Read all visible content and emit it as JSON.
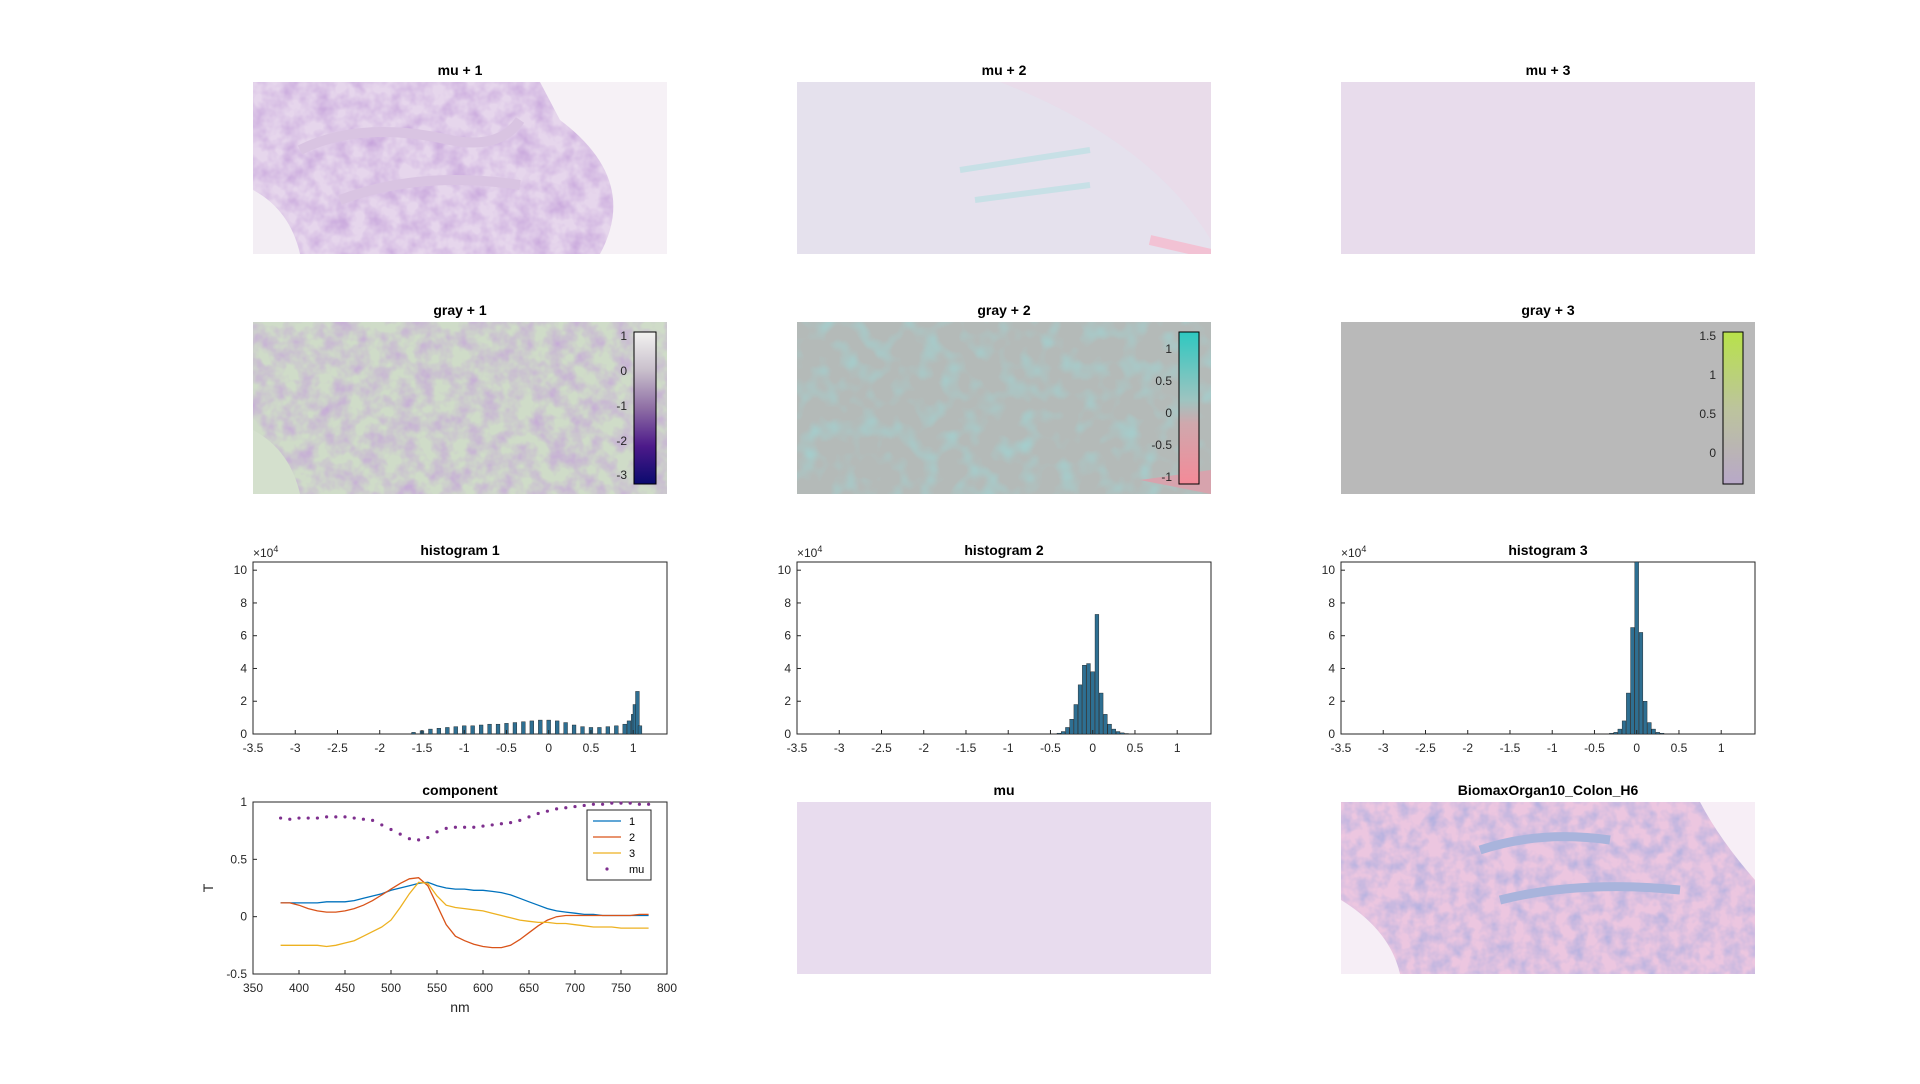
{
  "image_panels": [
    {
      "title": "mu + 1"
    },
    {
      "title": "mu + 2"
    },
    {
      "title": "mu + 3"
    },
    {
      "title": "gray + 1",
      "colorbar_ticks": [
        "1",
        "0",
        "-1",
        "-2",
        "-3"
      ]
    },
    {
      "title": "gray + 2",
      "colorbar_ticks": [
        "1",
        "0.5",
        "0",
        "-0.5",
        "-1"
      ]
    },
    {
      "title": "gray + 3",
      "colorbar_ticks": [
        "1.5",
        "1",
        "0.5",
        "0"
      ]
    },
    {
      "title": "mu"
    },
    {
      "title": "BiomaxOrgan10_Colon_H6"
    }
  ],
  "colors": {
    "series_1": "#0072BD",
    "series_2": "#D95319",
    "series_3": "#EDB120",
    "mu": "#7E2F8E",
    "bar": "#2E6F92"
  },
  "chart_data": [
    {
      "type": "bar",
      "title": "histogram 1",
      "exponent_label": "×10",
      "exponent_power": "4",
      "xlim": [
        -3.5,
        1.4
      ],
      "ylim": [
        0,
        10.5
      ],
      "xticks": [
        "-3.5",
        "-3",
        "-2.5",
        "-2",
        "-1.5",
        "-1",
        "-0.5",
        "0",
        "0.5",
        "1"
      ],
      "yticks": [
        "0",
        "2",
        "4",
        "6",
        "8",
        "10"
      ],
      "x": [
        -1.6,
        -1.5,
        -1.4,
        -1.3,
        -1.2,
        -1.1,
        -1.0,
        -0.9,
        -0.8,
        -0.7,
        -0.6,
        -0.5,
        -0.4,
        -0.3,
        -0.2,
        -0.1,
        0.0,
        0.1,
        0.2,
        0.3,
        0.4,
        0.5,
        0.6,
        0.7,
        0.8,
        0.9,
        0.95,
        1.0,
        1.02,
        1.05,
        1.08
      ],
      "values": [
        0.1,
        0.2,
        0.3,
        0.35,
        0.4,
        0.45,
        0.5,
        0.5,
        0.55,
        0.6,
        0.6,
        0.65,
        0.7,
        0.75,
        0.8,
        0.85,
        0.85,
        0.8,
        0.7,
        0.55,
        0.45,
        0.4,
        0.4,
        0.45,
        0.5,
        0.6,
        0.8,
        1.2,
        1.8,
        2.6,
        0.5
      ]
    },
    {
      "type": "bar",
      "title": "histogram 2",
      "exponent_label": "×10",
      "exponent_power": "4",
      "xlim": [
        -3.5,
        1.4
      ],
      "ylim": [
        0,
        10.5
      ],
      "xticks": [
        "-3.5",
        "-3",
        "-2.5",
        "-2",
        "-1.5",
        "-1",
        "-0.5",
        "0",
        "0.5",
        "1"
      ],
      "yticks": [
        "0",
        "2",
        "4",
        "6",
        "8",
        "10"
      ],
      "x": [
        -0.4,
        -0.35,
        -0.3,
        -0.25,
        -0.2,
        -0.15,
        -0.1,
        -0.05,
        0.0,
        0.05,
        0.1,
        0.15,
        0.2,
        0.25,
        0.3,
        0.35,
        0.4
      ],
      "values": [
        0.05,
        0.15,
        0.4,
        0.9,
        1.8,
        3.0,
        4.2,
        4.3,
        3.8,
        7.3,
        2.5,
        1.2,
        0.6,
        0.3,
        0.15,
        0.07,
        0.03
      ]
    },
    {
      "type": "bar",
      "title": "histogram 3",
      "exponent_label": "×10",
      "exponent_power": "4",
      "xlim": [
        -3.5,
        1.4
      ],
      "ylim": [
        0,
        10.5
      ],
      "xticks": [
        "-3.5",
        "-3",
        "-2.5",
        "-2",
        "-1.5",
        "-1",
        "-0.5",
        "0",
        "0.5",
        "1"
      ],
      "yticks": [
        "0",
        "2",
        "4",
        "6",
        "8",
        "10"
      ],
      "x": [
        -0.3,
        -0.25,
        -0.2,
        -0.15,
        -0.1,
        -0.05,
        0.0,
        0.05,
        0.1,
        0.15,
        0.2,
        0.25,
        0.3
      ],
      "values": [
        0.05,
        0.1,
        0.3,
        0.8,
        2.5,
        6.5,
        10.5,
        6.2,
        2.0,
        0.7,
        0.3,
        0.1,
        0.05
      ]
    },
    {
      "type": "line",
      "title": "component",
      "xlabel": "nm",
      "ylabel": "T",
      "xlim": [
        350,
        800
      ],
      "ylim": [
        -0.5,
        1
      ],
      "xticks": [
        "350",
        "400",
        "450",
        "500",
        "550",
        "600",
        "650",
        "700",
        "750",
        "800"
      ],
      "yticks": [
        "-0.5",
        "0",
        "0.5",
        "1"
      ],
      "legend_position": "top-right",
      "x": [
        380,
        390,
        400,
        410,
        420,
        430,
        440,
        450,
        460,
        470,
        480,
        490,
        500,
        510,
        520,
        530,
        540,
        550,
        560,
        570,
        580,
        590,
        600,
        610,
        620,
        630,
        640,
        650,
        660,
        670,
        680,
        690,
        700,
        710,
        720,
        730,
        740,
        750,
        760,
        770,
        780
      ],
      "series": [
        {
          "name": "1",
          "values": [
            0.12,
            0.12,
            0.12,
            0.12,
            0.12,
            0.13,
            0.13,
            0.13,
            0.14,
            0.16,
            0.18,
            0.2,
            0.23,
            0.25,
            0.27,
            0.29,
            0.3,
            0.27,
            0.25,
            0.24,
            0.24,
            0.23,
            0.23,
            0.22,
            0.21,
            0.19,
            0.16,
            0.13,
            0.1,
            0.07,
            0.05,
            0.04,
            0.03,
            0.02,
            0.02,
            0.01,
            0.01,
            0.01,
            0.01,
            0.01,
            0.01
          ]
        },
        {
          "name": "2",
          "values": [
            0.12,
            0.12,
            0.1,
            0.07,
            0.05,
            0.04,
            0.04,
            0.05,
            0.07,
            0.1,
            0.14,
            0.19,
            0.24,
            0.29,
            0.33,
            0.34,
            0.27,
            0.1,
            -0.07,
            -0.17,
            -0.21,
            -0.24,
            -0.26,
            -0.27,
            -0.27,
            -0.25,
            -0.2,
            -0.14,
            -0.08,
            -0.03,
            0.0,
            0.01,
            0.01,
            0.01,
            0.01,
            0.01,
            0.01,
            0.01,
            0.01,
            0.02,
            0.02
          ]
        },
        {
          "name": "3",
          "values": [
            -0.25,
            -0.25,
            -0.25,
            -0.25,
            -0.25,
            -0.26,
            -0.25,
            -0.23,
            -0.21,
            -0.17,
            -0.13,
            -0.09,
            -0.03,
            0.08,
            0.2,
            0.3,
            0.29,
            0.18,
            0.1,
            0.08,
            0.07,
            0.06,
            0.05,
            0.03,
            0.01,
            -0.01,
            -0.03,
            -0.04,
            -0.05,
            -0.05,
            -0.06,
            -0.06,
            -0.07,
            -0.08,
            -0.09,
            -0.09,
            -0.09,
            -0.1,
            -0.1,
            -0.1,
            -0.1
          ]
        },
        {
          "name": "mu",
          "marker": "dot",
          "values": [
            0.86,
            0.85,
            0.86,
            0.86,
            0.86,
            0.87,
            0.87,
            0.87,
            0.86,
            0.85,
            0.84,
            0.8,
            0.76,
            0.72,
            0.68,
            0.67,
            0.69,
            0.74,
            0.77,
            0.78,
            0.78,
            0.78,
            0.79,
            0.8,
            0.81,
            0.82,
            0.84,
            0.87,
            0.9,
            0.92,
            0.94,
            0.95,
            0.96,
            0.97,
            0.98,
            0.98,
            0.99,
            0.99,
            0.99,
            0.98,
            0.98
          ]
        }
      ]
    }
  ]
}
